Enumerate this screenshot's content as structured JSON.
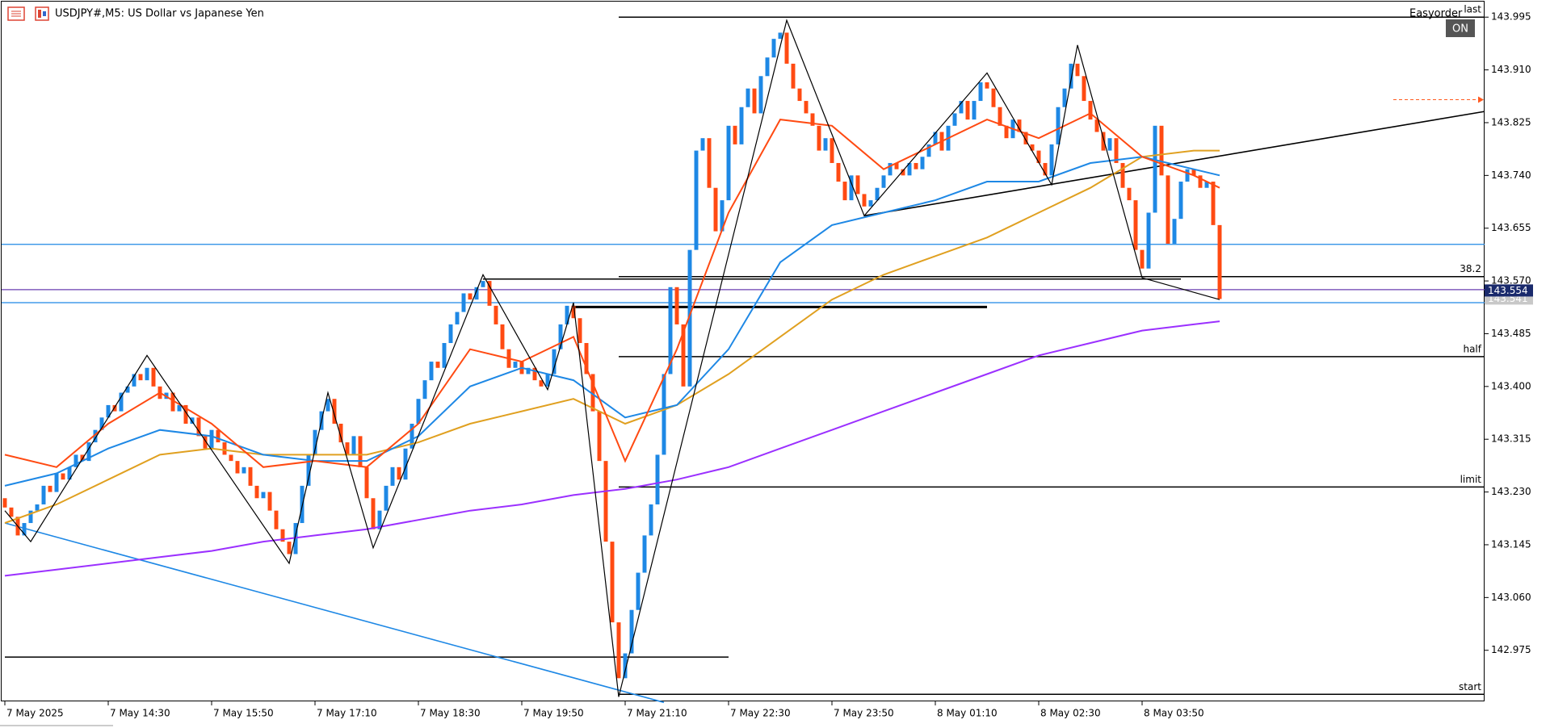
{
  "chart_data": {
    "type": "candlestick",
    "title": "USDJPY#,M5:  US Dollar vs Japanese Yen",
    "panel_title": "Easyorder",
    "panel_button": "ON",
    "up_color": "#1e88e5",
    "down_color": "#ff4a12",
    "xlim": [
      -0.5,
      229
    ],
    "ylim": [
      142.894,
      144.02
    ],
    "xticks": [
      {
        "value": 0,
        "label": "7 May 2025"
      },
      {
        "value": 16,
        "label": "7 May 14:30"
      },
      {
        "value": 32,
        "label": "7 May 15:50"
      },
      {
        "value": 48,
        "label": "7 May 17:10"
      },
      {
        "value": 64,
        "label": "7 May 18:30"
      },
      {
        "value": 80,
        "label": "7 May 19:50"
      },
      {
        "value": 96,
        "label": "7 May 21:10"
      },
      {
        "value": 112,
        "label": "7 May 22:30"
      },
      {
        "value": 128,
        "label": "7 May 23:50"
      },
      {
        "value": 144,
        "label": "8 May 01:10"
      },
      {
        "value": 160,
        "label": "8 May 02:30"
      },
      {
        "value": 176,
        "label": "8 May 03:50"
      }
    ],
    "yticks": [
      143.995,
      {
        "value": 143.91,
        "label": "143.910"
      },
      143.825,
      {
        "value": 143.74,
        "label": "143.740"
      },
      143.655,
      {
        "value": 143.57,
        "label": "143.570"
      },
      143.485,
      {
        "value": 143.4,
        "label": "143.400"
      },
      143.315,
      {
        "value": 143.23,
        "label": "143.230"
      },
      143.145,
      {
        "value": 143.06,
        "label": "143.060"
      },
      142.975
    ],
    "candles": {
      "open": [
        143.22,
        143.205,
        143.19,
        143.16,
        143.18,
        143.2,
        143.21,
        143.24,
        143.23,
        143.26,
        143.25,
        143.27,
        143.29,
        143.28,
        143.31,
        143.33,
        143.35,
        143.37,
        143.36,
        143.39,
        143.4,
        143.42,
        143.41,
        143.43,
        143.4,
        143.38,
        143.39,
        143.36,
        143.37,
        143.34,
        143.35,
        143.32,
        143.3,
        143.33,
        143.31,
        143.29,
        143.28,
        143.26,
        143.27,
        143.24,
        143.22,
        143.23,
        143.2,
        143.17,
        143.15,
        143.13,
        143.18,
        143.24,
        143.29,
        143.33,
        143.36,
        143.38,
        143.34,
        143.31,
        143.29,
        143.32,
        143.27,
        143.22,
        143.17,
        143.2,
        143.24,
        143.27,
        143.25,
        143.3,
        143.34,
        143.38,
        143.41,
        143.44,
        143.43,
        143.47,
        143.5,
        143.52,
        143.55,
        143.54,
        143.56,
        143.57,
        143.53,
        143.5,
        143.46,
        143.43,
        143.44,
        143.42,
        143.43,
        143.41,
        143.4,
        143.42,
        143.46,
        143.5,
        143.53,
        143.51,
        143.47,
        143.42,
        143.36,
        143.28,
        143.15,
        143.02,
        142.93,
        142.97,
        143.04,
        143.1,
        143.16,
        143.21,
        143.29,
        143.42,
        143.56,
        143.5,
        143.4,
        143.62,
        143.78,
        143.8,
        143.72,
        143.65,
        143.7,
        143.82,
        143.79,
        143.85,
        143.88,
        143.84,
        143.9,
        143.93,
        143.96,
        143.97,
        143.92,
        143.88,
        143.86,
        143.84,
        143.82,
        143.78,
        143.8,
        143.76,
        143.73,
        143.7,
        143.74,
        143.71,
        143.69,
        143.7,
        143.72,
        143.74,
        143.76,
        143.75,
        143.74,
        143.76,
        143.75,
        143.77,
        143.79,
        143.81,
        143.78,
        143.82,
        143.84,
        143.86,
        143.83,
        143.86,
        143.89,
        143.88,
        143.85,
        143.82,
        143.8,
        143.83,
        143.81,
        143.79,
        143.78,
        143.76,
        143.74,
        143.79,
        143.85,
        143.88,
        143.92,
        143.9,
        143.86,
        143.83,
        143.81,
        143.78,
        143.8,
        143.76,
        143.72,
        143.7,
        143.62,
        143.59,
        143.68,
        143.82,
        143.74,
        143.63,
        143.67,
        143.73,
        143.75,
        143.74,
        143.72,
        143.73,
        143.66
      ],
      "close": [
        143.205,
        143.19,
        143.16,
        143.18,
        143.2,
        143.21,
        143.24,
        143.23,
        143.26,
        143.25,
        143.27,
        143.29,
        143.28,
        143.31,
        143.33,
        143.35,
        143.37,
        143.36,
        143.39,
        143.4,
        143.42,
        143.41,
        143.43,
        143.4,
        143.38,
        143.39,
        143.36,
        143.37,
        143.34,
        143.35,
        143.32,
        143.3,
        143.33,
        143.31,
        143.29,
        143.28,
        143.26,
        143.27,
        143.24,
        143.22,
        143.23,
        143.2,
        143.17,
        143.15,
        143.13,
        143.18,
        143.24,
        143.29,
        143.33,
        143.36,
        143.38,
        143.34,
        143.31,
        143.29,
        143.32,
        143.27,
        143.22,
        143.17,
        143.2,
        143.24,
        143.27,
        143.25,
        143.3,
        143.34,
        143.38,
        143.41,
        143.44,
        143.43,
        143.47,
        143.5,
        143.52,
        143.55,
        143.54,
        143.56,
        143.57,
        143.53,
        143.5,
        143.46,
        143.43,
        143.44,
        143.42,
        143.43,
        143.41,
        143.4,
        143.42,
        143.46,
        143.5,
        143.53,
        143.51,
        143.47,
        143.42,
        143.36,
        143.28,
        143.15,
        143.02,
        142.93,
        142.97,
        143.04,
        143.1,
        143.16,
        143.21,
        143.29,
        143.42,
        143.56,
        143.5,
        143.4,
        143.62,
        143.78,
        143.8,
        143.72,
        143.65,
        143.7,
        143.82,
        143.79,
        143.85,
        143.88,
        143.84,
        143.9,
        143.93,
        143.96,
        143.97,
        143.92,
        143.88,
        143.86,
        143.84,
        143.82,
        143.78,
        143.8,
        143.76,
        143.73,
        143.7,
        143.74,
        143.71,
        143.69,
        143.7,
        143.72,
        143.74,
        143.76,
        143.75,
        143.74,
        143.76,
        143.75,
        143.77,
        143.79,
        143.81,
        143.78,
        143.82,
        143.84,
        143.86,
        143.83,
        143.86,
        143.89,
        143.88,
        143.85,
        143.82,
        143.8,
        143.83,
        143.81,
        143.79,
        143.78,
        143.76,
        143.74,
        143.79,
        143.85,
        143.88,
        143.92,
        143.9,
        143.86,
        143.83,
        143.81,
        143.78,
        143.8,
        143.76,
        143.72,
        143.7,
        143.62,
        143.59,
        143.68,
        143.82,
        143.74,
        143.63,
        143.67,
        143.73,
        143.75,
        143.74,
        143.72,
        143.73,
        143.66,
        143.541
      ]
    },
    "ma_x": [
      0,
      8,
      16,
      24,
      32,
      40,
      48,
      56,
      64,
      72,
      80,
      88,
      96,
      104,
      112,
      120,
      128,
      136,
      144,
      152,
      160,
      168,
      176,
      184,
      188
    ],
    "moving_averages": [
      {
        "color": "#9b30ff",
        "values": [
          143.095,
          143.105,
          143.115,
          143.125,
          143.135,
          143.15,
          143.16,
          143.17,
          143.185,
          143.2,
          143.21,
          143.225,
          143.235,
          143.25,
          143.27,
          143.3,
          143.33,
          143.36,
          143.39,
          143.42,
          143.45,
          143.47,
          143.49,
          143.5,
          143.505
        ]
      },
      {
        "color": "#e0a020",
        "values": [
          143.18,
          143.21,
          143.25,
          143.29,
          143.3,
          143.29,
          143.29,
          143.29,
          143.31,
          143.34,
          143.36,
          143.38,
          143.34,
          143.37,
          143.42,
          143.48,
          143.54,
          143.58,
          143.61,
          143.64,
          143.68,
          143.72,
          143.77,
          143.78,
          143.78
        ]
      },
      {
        "color": "#1e88e5",
        "values": [
          143.24,
          143.26,
          143.3,
          143.33,
          143.32,
          143.29,
          143.28,
          143.28,
          143.32,
          143.4,
          143.43,
          143.41,
          143.35,
          143.37,
          143.46,
          143.6,
          143.66,
          143.68,
          143.7,
          143.73,
          143.73,
          143.76,
          143.77,
          143.75,
          143.74
        ]
      },
      {
        "color": "#ff4a12",
        "values": [
          143.29,
          143.27,
          143.34,
          143.39,
          143.34,
          143.27,
          143.28,
          143.27,
          143.34,
          143.46,
          143.44,
          143.48,
          143.28,
          143.46,
          143.68,
          143.83,
          143.82,
          143.75,
          143.79,
          143.83,
          143.8,
          143.84,
          143.77,
          143.74,
          143.72
        ]
      }
    ],
    "zigzag": {
      "x": [
        0,
        4,
        22,
        44,
        50,
        57,
        74,
        84,
        88,
        95,
        121,
        133,
        152,
        162,
        166,
        176,
        188
      ],
      "y": [
        143.2,
        143.15,
        143.45,
        143.115,
        143.39,
        143.14,
        143.58,
        143.395,
        143.535,
        142.9,
        143.99,
        143.675,
        143.905,
        143.725,
        143.95,
        143.575,
        143.54
      ]
    },
    "trendlines": [
      {
        "x": [
          0,
          102
        ],
        "y": [
          143.18,
          142.891
        ],
        "color": "#1e88e5"
      },
      {
        "x": [
          133,
          229
        ],
        "y": [
          143.675,
          143.843
        ],
        "color": "#000000"
      }
    ],
    "levels": [
      {
        "label": "last",
        "value": 143.995,
        "x0": 95
      },
      {
        "label": "38.2",
        "value": 143.577,
        "x0": 95
      },
      {
        "label": "half",
        "value": 143.448,
        "x0": 95
      },
      {
        "label": "limit",
        "value": 143.238,
        "x0": 95
      },
      {
        "label": "start",
        "value": 142.904,
        "x0": 95
      }
    ],
    "segments": [
      {
        "value": 143.573,
        "x0": 74,
        "x1": 182,
        "width": 1.5
      },
      {
        "value": 143.528,
        "x0": 88,
        "x1": 152,
        "width": 3
      },
      {
        "value": 142.964,
        "x0": 0,
        "x1": 112,
        "width": 1.5
      }
    ],
    "hlines": [
      {
        "value": 143.629,
        "color": "#1e88e5"
      },
      {
        "value": 143.556,
        "color": "#6a3fb0"
      },
      {
        "value": 143.535,
        "color": "#1e88e5"
      }
    ],
    "order_marker": 143.862,
    "bid": 143.554,
    "last_price": 143.541
  }
}
